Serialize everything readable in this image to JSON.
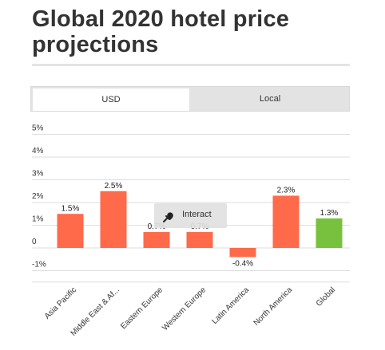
{
  "header": {
    "title": "Global 2020 hotel price projections"
  },
  "tabs": [
    {
      "label": "USD",
      "active": true
    },
    {
      "label": "Local",
      "active": false
    }
  ],
  "tooltip": {
    "label": "Interact",
    "icon": "hand-pointer-icon"
  },
  "colors": {
    "bar_region": "#ff6a4a",
    "bar_global": "#78c13f",
    "grid": "#dedede"
  },
  "chart_data": {
    "type": "bar",
    "title": "",
    "xlabel": "",
    "ylabel": "",
    "ylim": [
      -1.5,
      5
    ],
    "yticks": [
      "5%",
      "4%",
      "3%",
      "2%",
      "1%",
      "0",
      "-1%"
    ],
    "ytick_values": [
      5,
      4,
      3,
      2,
      1,
      0,
      -1
    ],
    "categories": [
      "Asia Pacific",
      "Middle East & Af...",
      "Eastern Europe",
      "Western Europe",
      "Latin America",
      "North America",
      "Global"
    ],
    "values": [
      1.5,
      2.5,
      0.7,
      0.7,
      -0.4,
      2.3,
      1.3
    ],
    "data_labels": [
      "1.5%",
      "2.5%",
      "0.7%",
      "0.7%",
      "-0.4%",
      "2.3%",
      "1.3%"
    ],
    "bar_colors": [
      "#ff6a4a",
      "#ff6a4a",
      "#ff6a4a",
      "#ff6a4a",
      "#ff6a4a",
      "#ff6a4a",
      "#78c13f"
    ],
    "grid": true,
    "legend": "none"
  }
}
